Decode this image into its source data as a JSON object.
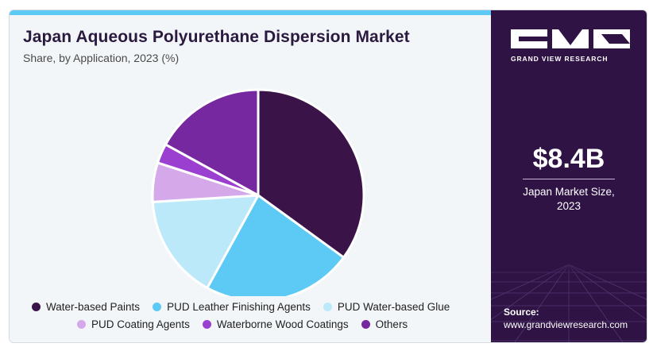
{
  "header": {
    "title": "Japan Aqueous Polyurethane Dispersion Market",
    "subtitle": "Share, by Application, 2023 (%)"
  },
  "chart_data": {
    "type": "pie",
    "title": "Japan Aqueous Polyurethane Dispersion Market",
    "subtitle": "Share, by Application, 2023 (%)",
    "start_angle_deg": 0,
    "direction": "clockwise",
    "slices": [
      {
        "label": "Water-based Paints",
        "value": 35,
        "color": "#3a1448"
      },
      {
        "label": "PUD Leather Finishing Agents",
        "value": 23,
        "color": "#5ccaf5"
      },
      {
        "label": "PUD Water-based Glue",
        "value": 16,
        "color": "#bce9fa"
      },
      {
        "label": "PUD Coating Agents",
        "value": 6,
        "color": "#d5a8ea"
      },
      {
        "label": "Waterborne Wood Coatings",
        "value": 3,
        "color": "#9a3fd0"
      },
      {
        "label": "Others",
        "value": 17,
        "color": "#7628a0"
      }
    ],
    "legend_position": "bottom"
  },
  "sidebar": {
    "brand": "GRAND VIEW RESEARCH",
    "market_size": "$8.4B",
    "market_size_label_line1": "Japan Market Size,",
    "market_size_label_line2": "2023",
    "source_label": "Source:",
    "source_url": "www.grandviewresearch.com"
  },
  "colors": {
    "panel_bg": "#2f1344",
    "accent": "#5ccaf5",
    "title": "#2b1a40"
  }
}
